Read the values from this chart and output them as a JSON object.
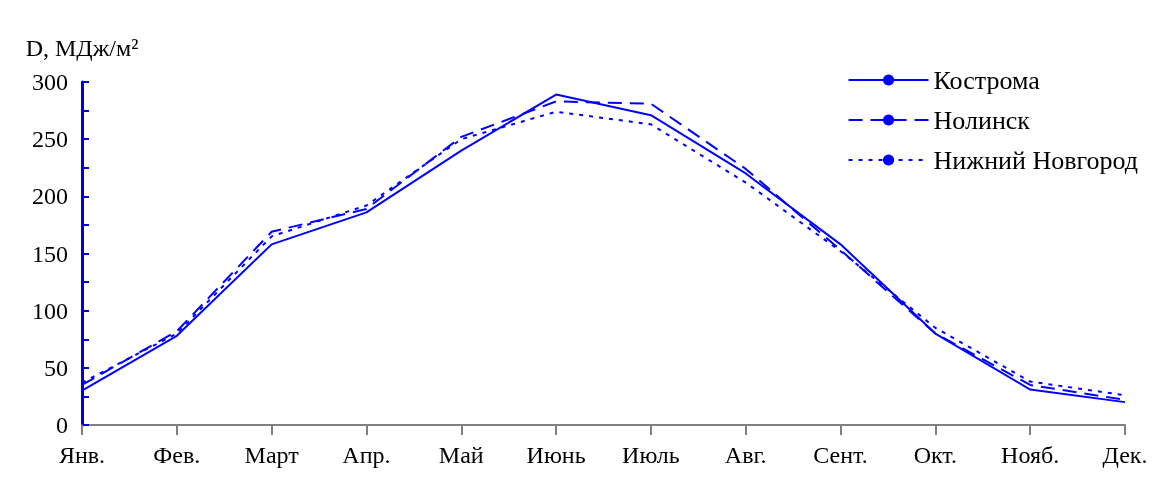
{
  "chart_data": {
    "type": "line",
    "ylabel": "D, МДж/м²",
    "categories": [
      "Янв.",
      "Фев.",
      "Март",
      "Апр.",
      "Май",
      "Июнь",
      "Июль",
      "Авг.",
      "Сент.",
      "Окт.",
      "Нояб.",
      "Дек."
    ],
    "series": [
      {
        "name": "Кострома",
        "color": "#0000ff",
        "line_style": "solid",
        "values": [
          30,
          78,
          158,
          186,
          240,
          289,
          271,
          220,
          158,
          80,
          31,
          20
        ]
      },
      {
        "name": "Нолинск",
        "color": "#0000ff",
        "line_style": "dashed",
        "values": [
          35,
          82,
          169,
          189,
          252,
          283,
          281,
          224,
          153,
          80,
          35,
          22
        ]
      },
      {
        "name": "Нижний Новгород",
        "color": "#0000ff",
        "line_style": "dotted",
        "values": [
          37,
          80,
          165,
          192,
          250,
          274,
          263,
          212,
          152,
          85,
          38,
          26
        ]
      }
    ],
    "ylim": [
      0,
      300
    ],
    "yticks": [
      0,
      {
        "value": 25,
        "label": null
      },
      50,
      {
        "value": 75,
        "label": null
      },
      100,
      {
        "value": 125,
        "label": null
      },
      150,
      {
        "value": 175,
        "label": null
      },
      200,
      {
        "value": 225,
        "label": null
      },
      250,
      {
        "value": 275,
        "label": null
      },
      300
    ],
    "grid": false,
    "legend": "top right",
    "marker": "none"
  }
}
